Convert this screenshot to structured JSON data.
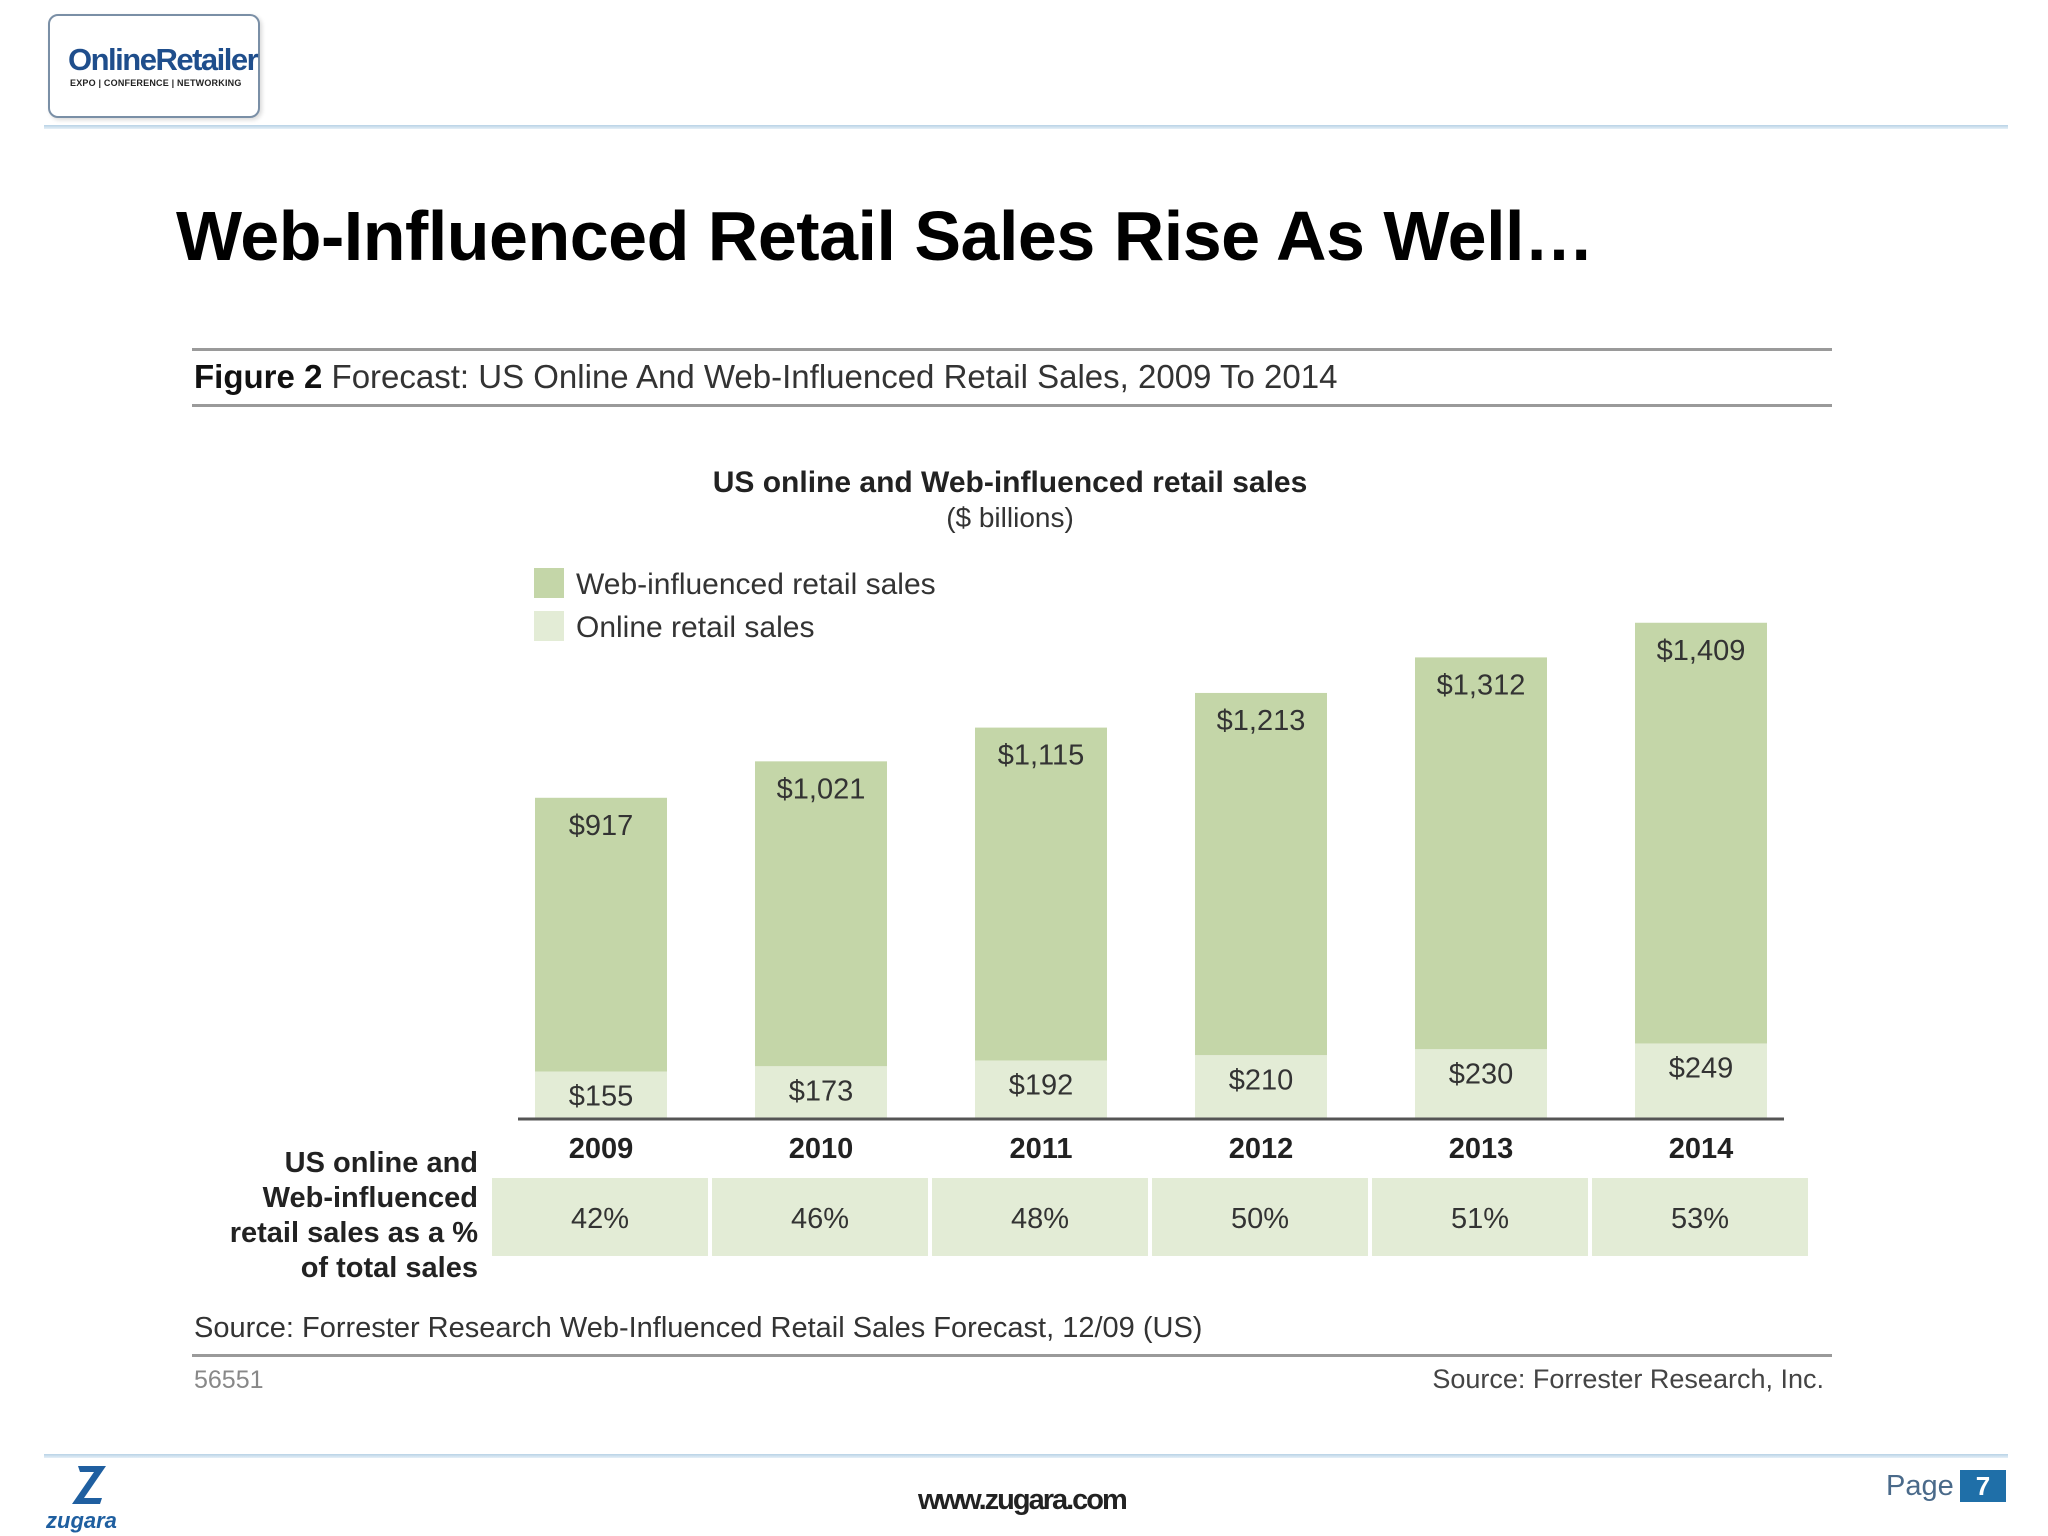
{
  "header": {
    "logo_online": "Online",
    "logo_retailer": "Retailer",
    "logo_tagline": "EXPO | CONFERENCE | NETWORKING",
    "title": "Web-Influenced Retail Sales Rise As Well…"
  },
  "figure": {
    "label": "Figure 2",
    "title": "Forecast: US Online And Web-Influenced Retail Sales, 2009 To 2014",
    "source_line": "Source: Forrester Research Web-Influenced Retail Sales Forecast, 12/09 (US)",
    "id": "56551",
    "source": "Source: Forrester Research, Inc."
  },
  "chart_data": {
    "type": "bar",
    "stacked": true,
    "title": "US online and Web-influenced retail sales",
    "subtitle": "($ billions)",
    "legend_placement": "top-left",
    "categories": [
      "2009",
      "2010",
      "2011",
      "2012",
      "2013",
      "2014"
    ],
    "series": [
      {
        "name": "Web-influenced retail sales",
        "values": [
          917,
          1021,
          1115,
          1213,
          1312,
          1409
        ],
        "labels": [
          "$917",
          "$1,021",
          "$1,115",
          "$1,213",
          "$1,312",
          "$1,409"
        ],
        "color": "#c4d6a8"
      },
      {
        "name": "Online retail sales",
        "values": [
          155,
          173,
          192,
          210,
          230,
          249
        ],
        "labels": [
          "$155",
          "$173",
          "$192",
          "$210",
          "$230",
          "$249"
        ],
        "color": "#e3ecd6"
      }
    ],
    "legend_order": [
      0,
      1
    ],
    "stack_order_bottom_to_top": [
      1,
      0
    ],
    "table": {
      "row_label": [
        "US online and",
        "Web-influenced",
        "retail sales as a %",
        "of total sales"
      ],
      "values": [
        "42%",
        "46%",
        "48%",
        "50%",
        "51%",
        "53%"
      ],
      "color": "#e3ecd6"
    },
    "grid": false
  },
  "footer": {
    "brand": "zugara",
    "url": "www.zugara.com",
    "page_label": "Page",
    "page_number": "7"
  }
}
